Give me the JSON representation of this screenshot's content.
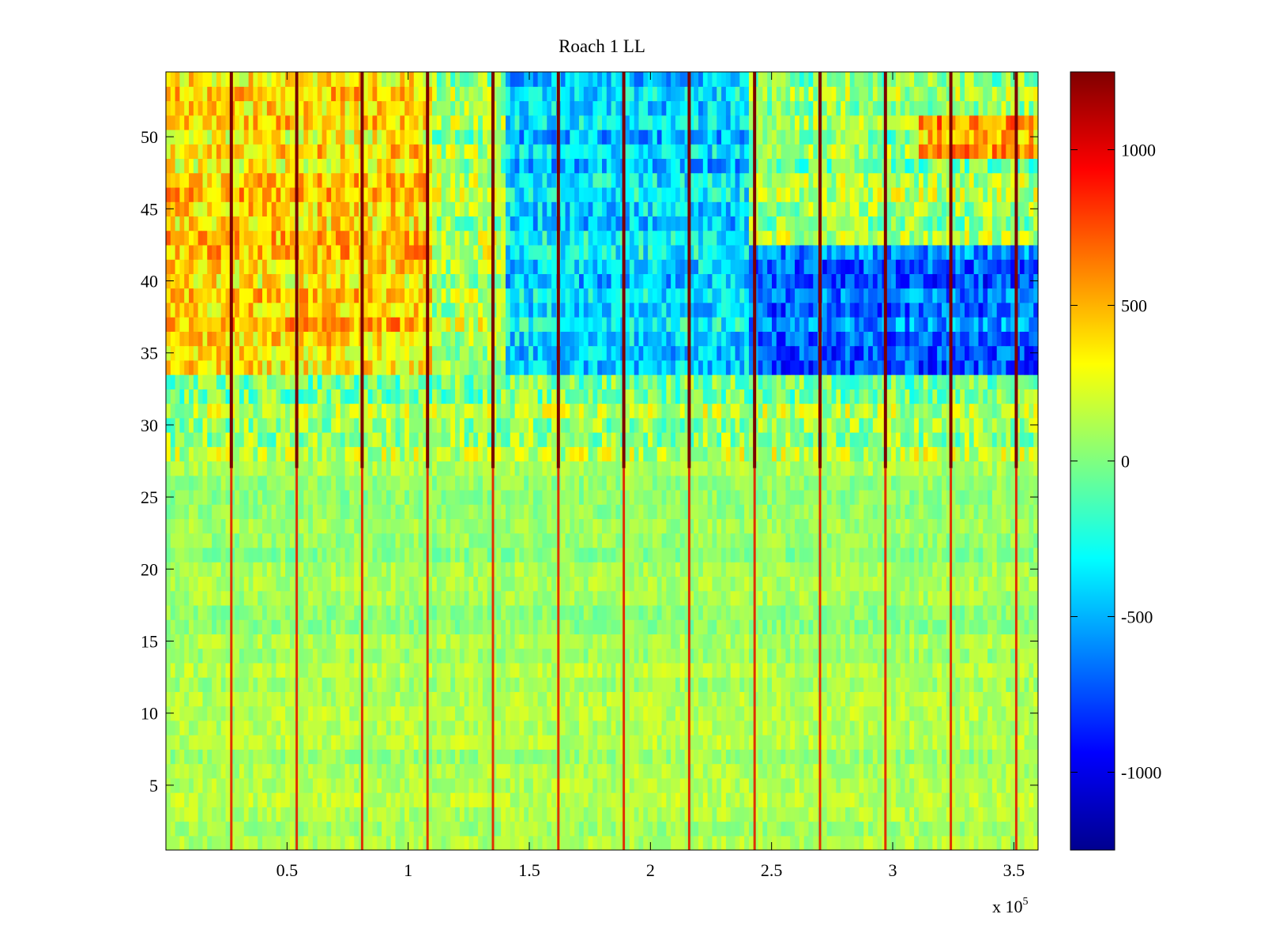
{
  "chart_data": {
    "type": "heatmap",
    "title": "Roach 1 LL",
    "xlabel": "",
    "ylabel": "",
    "x_multiplier_base": "x 10",
    "x_multiplier_exp": "5",
    "xlim": [
      0,
      3.6
    ],
    "ylim": [
      0.5,
      54.5
    ],
    "xticks": [
      0.5,
      1,
      1.5,
      2,
      2.5,
      3,
      3.5
    ],
    "xtick_labels": [
      "0.5",
      "1",
      "1.5",
      "2",
      "2.5",
      "3",
      "3.5"
    ],
    "yticks": [
      5,
      10,
      15,
      20,
      25,
      30,
      35,
      40,
      45,
      50
    ],
    "ytick_labels": [
      "5",
      "10",
      "15",
      "20",
      "25",
      "30",
      "35",
      "40",
      "45",
      "50"
    ],
    "colormap": "jet",
    "clim": [
      -1250,
      1250
    ],
    "colorbar_ticks": [
      1000,
      500,
      0,
      -500,
      -1000
    ],
    "colorbar_labels": [
      "1000",
      "500",
      "0",
      "-500",
      "-1000"
    ],
    "rows": 54,
    "stimulus_columns_x": [
      0.27,
      0.54,
      0.81,
      1.08,
      1.35,
      1.62,
      1.89,
      2.16,
      2.43,
      2.7,
      2.97,
      3.24,
      3.51
    ],
    "regions": [
      {
        "x_range": [
          0,
          1.1
        ],
        "y_range": [
          34,
          54
        ],
        "mean_value": 400
      },
      {
        "x_range": [
          1.4,
          2.4
        ],
        "y_range": [
          34,
          54
        ],
        "mean_value": -400
      },
      {
        "x_range": [
          2.4,
          3.6
        ],
        "y_range": [
          34,
          42
        ],
        "mean_value": -700
      },
      {
        "x_range": [
          3.1,
          3.6
        ],
        "y_range": [
          49,
          51
        ],
        "mean_value": 550
      },
      {
        "x_range": [
          0,
          3.6
        ],
        "y_range": [
          0.5,
          15
        ],
        "mean_value": 100
      }
    ]
  },
  "colors": {
    "axis": "#000000",
    "background": "#ffffff"
  }
}
